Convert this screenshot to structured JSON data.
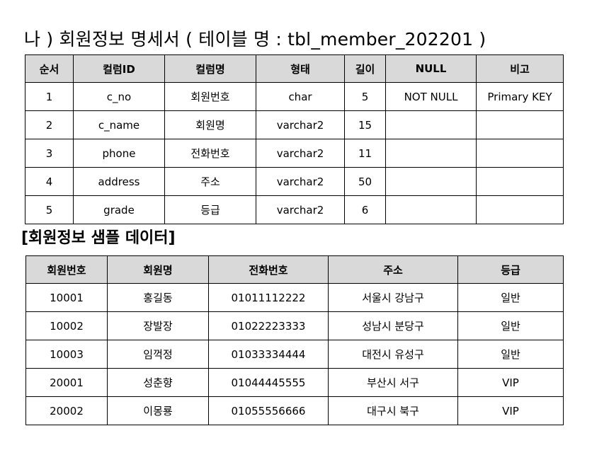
{
  "title": "나 ) 회원정보 명세서 ( 테이블 명 : tbl_member_202201 )",
  "schema_table": {
    "headers": [
      "순서",
      "컬럼ID",
      "컬럼명",
      "형태",
      "길이",
      "NULL",
      "비고"
    ],
    "rows": [
      [
        "1",
        "c_no",
        "회원번호",
        "char",
        "5",
        "NOT NULL",
        "Primary KEY"
      ],
      [
        "2",
        "c_name",
        "회원명",
        "varchar2",
        "15",
        "",
        ""
      ],
      [
        "3",
        "phone",
        "전화번호",
        "varchar2",
        "11",
        "",
        ""
      ],
      [
        "4",
        "address",
        "주소",
        "varchar2",
        "50",
        "",
        ""
      ],
      [
        "5",
        "grade",
        "등급",
        "varchar2",
        "6",
        "",
        ""
      ]
    ]
  },
  "sample_title": "[회원정보 샘플 데이터]",
  "sample_table": {
    "headers": [
      "회원번호",
      "회원명",
      "전화번호",
      "주소",
      "등급"
    ],
    "rows": [
      [
        "10001",
        "홍길동",
        "01011112222",
        "서울시 강남구",
        "일반"
      ],
      [
        "10002",
        "장발장",
        "01022223333",
        "성남시 분당구",
        "일반"
      ],
      [
        "10003",
        "임꺽정",
        "01033334444",
        "대전시 유성구",
        "일반"
      ],
      [
        "20001",
        "성춘향",
        "01044445555",
        "부산시 서구",
        "VIP"
      ],
      [
        "20002",
        "이몽룡",
        "01055556666",
        "대구시 북구",
        "VIP"
      ]
    ]
  }
}
